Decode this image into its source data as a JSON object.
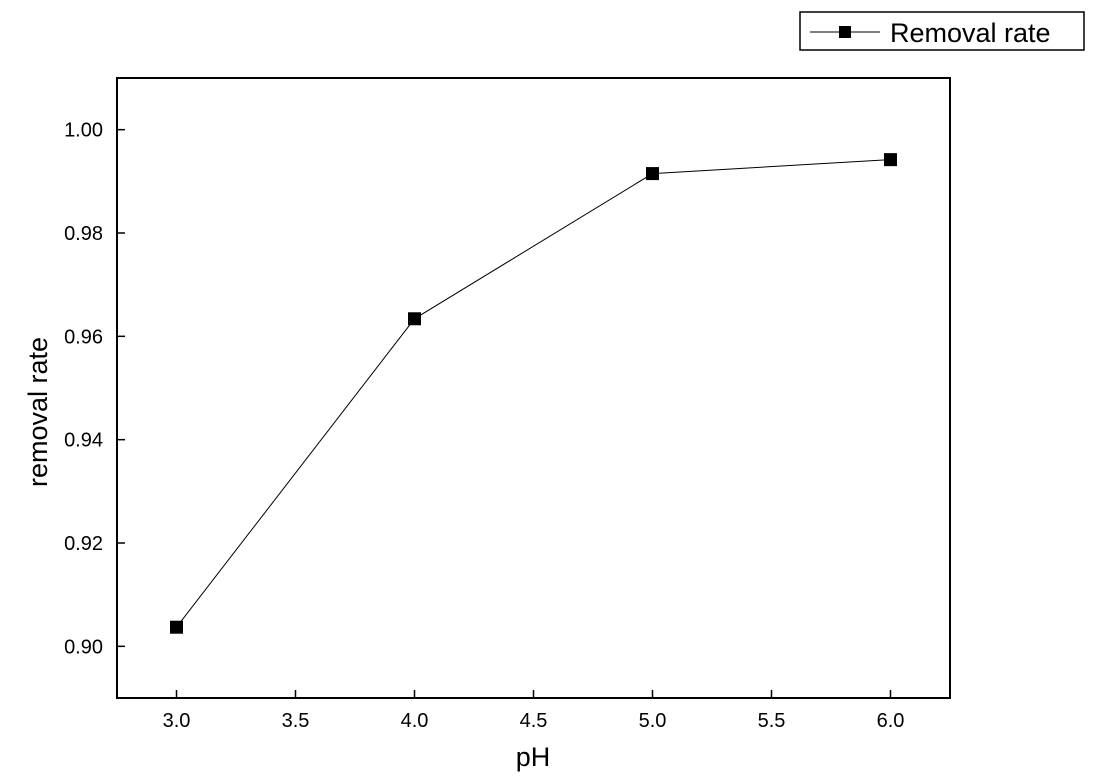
{
  "chart_data": {
    "type": "line",
    "title": "",
    "xlabel": "pH",
    "ylabel": "removal rate",
    "xlim": [
      2.75,
      6.25
    ],
    "ylim": [
      0.89,
      1.01
    ],
    "x_ticks": [
      3.0,
      3.5,
      4.0,
      4.5,
      5.0,
      5.5,
      6.0
    ],
    "x_tick_labels": [
      "3.0",
      "3.5",
      "4.0",
      "4.5",
      "5.0",
      "5.5",
      "6.0"
    ],
    "y_ticks": [
      0.9,
      0.92,
      0.94,
      0.96,
      0.98,
      1.0
    ],
    "y_tick_labels": [
      "0.90",
      "0.92",
      "0.94",
      "0.96",
      "0.98",
      "1.00"
    ],
    "grid": false,
    "legend_position": "top-right, outside plot",
    "series": [
      {
        "name": "Removal rate",
        "marker": "square",
        "color": "#000000",
        "x": [
          3.0,
          4.0,
          5.0,
          6.0
        ],
        "y": [
          0.9037,
          0.9634,
          0.9915,
          0.9942
        ]
      }
    ]
  }
}
